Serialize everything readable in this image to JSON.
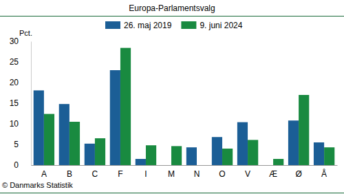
{
  "chart_data": {
    "type": "bar",
    "title": "Europa-Parlamentsvalg",
    "y_label": "Pct.",
    "source": "© Danmarks Statistik",
    "categories": [
      "A",
      "B",
      "C",
      "F",
      "I",
      "M",
      "N",
      "O",
      "V",
      "Æ",
      "Ø",
      "Å"
    ],
    "series": [
      {
        "name": "26. maj 2019",
        "color": "#1b5e96",
        "values": [
          18.1,
          14.8,
          5.2,
          23.0,
          1.5,
          null,
          4.3,
          6.8,
          10.4,
          null,
          10.8,
          5.5
        ]
      },
      {
        "name": "9. juni 2024",
        "color": "#198a40",
        "values": [
          12.4,
          10.5,
          6.5,
          28.4,
          4.8,
          4.6,
          null,
          4.0,
          6.1,
          1.5,
          17.0,
          4.3
        ]
      }
    ],
    "ylim": [
      0,
      30
    ],
    "yticks": [
      0,
      5,
      10,
      15,
      20,
      25,
      30
    ],
    "grid": false,
    "legend": "top"
  }
}
